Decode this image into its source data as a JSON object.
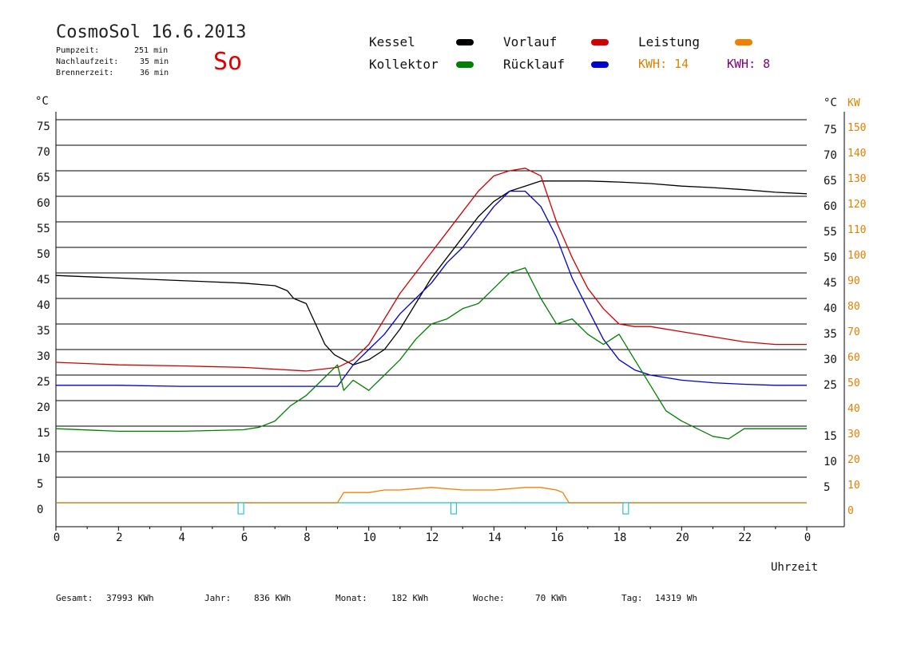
{
  "header": {
    "title": "CosmoSol 16.6.2013",
    "weekday": "So",
    "stats": [
      {
        "label": "Pumpzeit:",
        "value": "251 min"
      },
      {
        "label": "Nachlaufzeit:",
        "value": "35 min"
      },
      {
        "label": "Brennerzeit:",
        "value": "36 min"
      }
    ]
  },
  "legend": [
    {
      "label": "Kessel",
      "color": "#000000"
    },
    {
      "label": "Vorlauf",
      "color": "#d00000"
    },
    {
      "label": "Leistung",
      "color": "#f08000"
    },
    {
      "label": "Kollektor",
      "color": "#008000"
    },
    {
      "label": "Rücklauf",
      "color": "#0000d0"
    }
  ],
  "kwh": [
    {
      "text": "KWH: 14",
      "color": "#e08000"
    },
    {
      "text": "KWH: 8",
      "color": "#800080"
    }
  ],
  "footer": [
    {
      "label": "Gesamt:",
      "value": "37993 KWh"
    },
    {
      "label": "Jahr:",
      "value": "836 KWh"
    },
    {
      "label": "Monat:",
      "value": "182 KWh"
    },
    {
      "label": "Woche:",
      "value": "70 KWh"
    },
    {
      "label": "Tag:",
      "value": "14319 Wh"
    }
  ],
  "chart_data": {
    "type": "line",
    "xlabel": "Uhrzeit",
    "ylabel_left": "°C",
    "ylabel_right_temp": "°C",
    "ylabel_right_power": "KW",
    "xlim": [
      0,
      24
    ],
    "ylim": [
      0,
      75
    ],
    "x_ticks": [
      "0",
      "2",
      "4",
      "6",
      "8",
      "10",
      "12",
      "14",
      "16",
      "18",
      "20",
      "22",
      "0"
    ],
    "y_ticks_left": [
      "0",
      "5",
      "10",
      "15",
      "20",
      "25",
      "30",
      "35",
      "40",
      "45",
      "50",
      "55",
      "60",
      "65",
      "70",
      "75"
    ],
    "y_ticks_right": [
      "5",
      "10",
      "15",
      "25",
      "30",
      "35",
      "40",
      "45",
      "50",
      "55",
      "60",
      "65",
      "70",
      "75"
    ],
    "y_ticks_power": [
      "0",
      "10",
      "20",
      "30",
      "40",
      "50",
      "60",
      "70",
      "80",
      "90",
      "100",
      "110",
      "120",
      "130",
      "140",
      "150"
    ],
    "grid": true,
    "series": [
      {
        "name": "Kessel",
        "color": "#000000",
        "x": [
          0,
          2,
          4,
          6,
          7,
          7.4,
          7.6,
          8,
          8.3,
          8.6,
          8.9,
          9.2,
          9.5,
          10,
          10.5,
          11,
          11.5,
          12,
          12.5,
          13,
          13.5,
          14,
          14.5,
          15,
          15.5,
          16,
          17,
          18,
          19,
          20,
          21,
          22,
          23,
          24
        ],
        "y": [
          44.5,
          44,
          43.5,
          43,
          42.5,
          41.5,
          40,
          39,
          35,
          31,
          29,
          28,
          27,
          28,
          30,
          34,
          39,
          44,
          48,
          52,
          56,
          59,
          61,
          62,
          63,
          63,
          63,
          62.8,
          62.5,
          62,
          61.7,
          61.3,
          60.8,
          60.5
        ]
      },
      {
        "name": "Vorlauf",
        "color": "#d00000",
        "x": [
          0,
          2,
          4,
          6,
          8,
          9,
          9.5,
          10,
          10.5,
          11,
          11.5,
          12,
          12.5,
          13,
          13.5,
          14,
          14.5,
          15,
          15.5,
          16,
          16.5,
          17,
          17.5,
          18,
          18.5,
          19,
          20,
          21,
          22,
          23,
          24
        ],
        "y": [
          27.5,
          27,
          26.8,
          26.5,
          25.8,
          26.5,
          28,
          31,
          36,
          41,
          45,
          49,
          53,
          57,
          61,
          64,
          65,
          65.5,
          64,
          55,
          48,
          42,
          38,
          35,
          34.5,
          34.5,
          33.5,
          32.5,
          31.5,
          31,
          31
        ]
      },
      {
        "name": "Rücklauf",
        "color": "#0000d0",
        "x": [
          0,
          2,
          4,
          6,
          8,
          8.5,
          9,
          9.5,
          10,
          10.5,
          11,
          11.5,
          12,
          12.5,
          13,
          13.5,
          14,
          14.5,
          15,
          15.5,
          16,
          16.5,
          17,
          17.5,
          18,
          18.5,
          19,
          20,
          21,
          22,
          23,
          24
        ],
        "y": [
          23,
          23,
          22.8,
          22.8,
          22.8,
          22.8,
          22.8,
          27,
          30,
          33,
          37,
          40,
          43,
          47,
          50,
          54,
          58,
          61,
          61,
          58,
          52,
          44,
          38,
          32,
          28,
          26,
          25,
          24,
          23.5,
          23.2,
          23,
          23
        ]
      },
      {
        "name": "Kollektor",
        "color": "#008000",
        "x": [
          0,
          2,
          4,
          6,
          6.5,
          7,
          7.5,
          8,
          8.5,
          9,
          9.2,
          9.5,
          10,
          10.5,
          11,
          11.5,
          12,
          12.5,
          13,
          13.5,
          14,
          14.5,
          15,
          15.5,
          16,
          16.5,
          17,
          17.5,
          18,
          18.5,
          19,
          19.5,
          20,
          21,
          21.5,
          22,
          23,
          24
        ],
        "y": [
          14.5,
          14,
          14,
          14.3,
          14.8,
          16,
          19,
          21,
          24,
          27,
          22,
          24,
          22,
          25,
          28,
          32,
          35,
          36,
          38,
          39,
          42,
          45,
          46,
          40,
          35,
          36,
          33,
          31,
          33,
          28,
          23,
          18,
          16,
          13,
          12.5,
          14.5,
          14.5,
          14.5
        ]
      },
      {
        "name": "Leistung",
        "color": "#f08000",
        "x": [
          0,
          9,
          9.2,
          10,
          10.5,
          11,
          12,
          13,
          14,
          15,
          15.5,
          16,
          16.2,
          16.4,
          24
        ],
        "y": [
          0,
          0,
          2,
          2,
          2.5,
          2.5,
          3,
          2.5,
          2.5,
          3,
          3,
          2.5,
          2,
          0,
          0
        ]
      }
    ],
    "markers_x": [
      5.9,
      12.7,
      18.2
    ]
  }
}
